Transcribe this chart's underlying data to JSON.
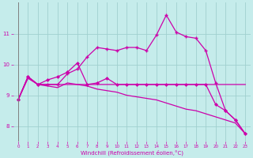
{
  "background_color": "#c5eceb",
  "grid_color": "#a0d0cf",
  "line_color": "#cc00aa",
  "xlabel": "Windchill (Refroidissement éolien,°C)",
  "xlim": [
    -0.5,
    23.5
  ],
  "ylim": [
    7.5,
    12.0
  ],
  "yticks": [
    8,
    9,
    10,
    11
  ],
  "xticks": [
    0,
    1,
    2,
    3,
    4,
    5,
    6,
    7,
    8,
    9,
    10,
    11,
    12,
    13,
    14,
    15,
    16,
    17,
    18,
    19,
    20,
    21,
    22,
    23
  ],
  "line1_x": [
    0,
    1,
    2,
    3,
    4,
    5,
    6,
    7,
    8,
    9,
    10,
    11,
    12,
    13,
    14,
    15,
    16,
    17,
    18,
    19,
    20,
    21,
    22,
    23
  ],
  "line1_y": [
    8.85,
    9.6,
    9.35,
    9.35,
    9.35,
    9.35,
    9.35,
    9.35,
    9.35,
    9.35,
    9.35,
    9.35,
    9.35,
    9.35,
    9.35,
    9.35,
    9.35,
    9.35,
    9.35,
    9.35,
    9.35,
    9.35,
    9.35,
    9.35
  ],
  "line2_x": [
    0,
    1,
    2,
    3,
    4,
    5,
    6,
    7,
    8,
    9,
    10,
    11,
    12,
    13,
    14,
    15,
    16,
    17,
    18,
    19,
    20,
    21,
    22,
    23
  ],
  "line2_y": [
    8.85,
    9.6,
    9.35,
    9.35,
    9.35,
    9.7,
    9.85,
    10.25,
    10.55,
    10.5,
    10.45,
    10.55,
    10.55,
    10.45,
    10.95,
    11.6,
    11.05,
    10.9,
    10.85,
    10.45,
    9.4,
    8.5,
    8.2,
    7.75
  ],
  "line3_x": [
    0,
    1,
    2,
    3,
    4,
    5,
    6,
    7,
    8,
    9,
    10,
    11,
    12,
    13,
    14,
    15,
    16,
    17,
    18,
    19,
    20,
    21,
    22,
    23
  ],
  "line3_y": [
    8.85,
    9.6,
    9.35,
    9.5,
    9.6,
    9.75,
    10.05,
    9.35,
    9.4,
    9.55,
    9.35,
    9.35,
    9.35,
    9.35,
    9.35,
    9.35,
    9.35,
    9.35,
    9.35,
    9.35,
    8.7,
    8.5,
    8.2,
    7.75
  ],
  "line4_x": [
    0,
    1,
    2,
    3,
    4,
    5,
    6,
    7,
    8,
    9,
    10,
    11,
    12,
    13,
    14,
    15,
    16,
    17,
    18,
    19,
    20,
    21,
    22,
    23
  ],
  "line4_y": [
    8.85,
    9.55,
    9.35,
    9.3,
    9.25,
    9.4,
    9.35,
    9.3,
    9.2,
    9.15,
    9.1,
    9.0,
    8.95,
    8.9,
    8.85,
    8.75,
    8.65,
    8.55,
    8.5,
    8.4,
    8.3,
    8.2,
    8.1,
    7.75
  ]
}
